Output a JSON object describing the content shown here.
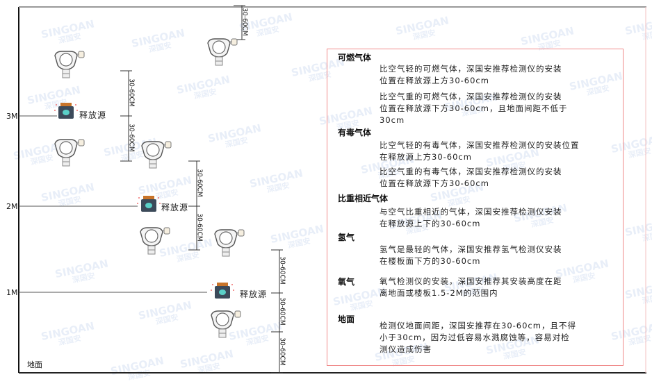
{
  "levels": {
    "l3": "3M",
    "l2": "2M",
    "l1": "1M",
    "ground": "地面"
  },
  "source_label": "释放源",
  "dimension_label": "30-60CM",
  "watermark": {
    "brand": "SINGOAN",
    "cn": "深国安"
  },
  "panel": {
    "sections": [
      {
        "title": "可燃气体",
        "paragraphs": [
          [
            "比空气轻的可燃气体，深国安推荐检测仪的安装",
            "位置在释放源上方30-60cm"
          ],
          [
            "比空气重的可燃气体，深国安推荐检测仪的安装",
            "位置在释放源下方30-60cm，且地面间距不低于",
            "30cm"
          ]
        ]
      },
      {
        "title": "有毒气体",
        "paragraphs": [
          [
            "比空气轻的有毒气体，深国安推荐检测仪的安装位置",
            "在释放源上方30-60cm"
          ],
          [
            "比空气重的有毒气体，深国安推荐检测仪的安装",
            "位置在释放源下方30-60cm"
          ]
        ]
      },
      {
        "title": "比重相近气体",
        "paragraphs": [
          [
            "与空气比重相近的气体，深国安推荐检测仪安装",
            "在释放源上下的30-60cm"
          ]
        ]
      },
      {
        "title": "氢气",
        "paragraphs": [
          [
            "氢气是最轻的气体，深国安推荐氢气检测仪安装",
            "在楼板面下方的30-60cm"
          ]
        ]
      },
      {
        "title": "氧气",
        "paragraphs": [
          [
            "氧气检测仪的安装，深国安推荐其安装高度在距",
            "离地面或楼板1.5-2M的范围内"
          ]
        ]
      },
      {
        "title": "地面",
        "paragraphs": [
          [
            "检测仪地面间距，深国安推荐在30-60cm，且不得",
            "小于30cm，因为过低容易水溅腐蚀等，容易对检",
            "测仪造成伤害"
          ]
        ]
      }
    ]
  },
  "colors": {
    "panel_border": "#f08a8a",
    "source_body": "#3c4a5a",
    "source_cap": "#c8742a",
    "source_face": "#5ad0c8"
  }
}
